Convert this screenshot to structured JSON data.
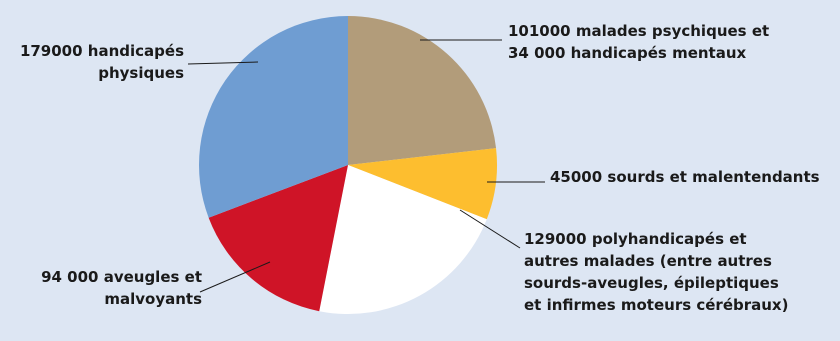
{
  "chart_data": {
    "type": "pie",
    "categories": [
      "malades psychiques et handicapés mentaux",
      "sourds et malentendants",
      "polyhandicapés et autres malades (entre autres sourds-aveugles, épileptiques et infirmes moteurs cérébraux)",
      "aveugles et malvoyants",
      "handicapés physiques"
    ],
    "values": [
      135000,
      45000,
      129000,
      94000,
      179000
    ],
    "colors": [
      "#b29c7a",
      "#fdbe2f",
      "#ffffff",
      "#cf1427",
      "#6f9dd2"
    ],
    "labels": [
      [
        "101000 malades psychiques et",
        "34 000 handicapés mentaux"
      ],
      [
        "45000 sourds et malentendants"
      ],
      [
        "129000 polyhandicapés et",
        "autres malades (entre autres",
        "sourds-aveugles, épileptiques",
        "et infirmes moteurs cérébraux)"
      ],
      [
        "94 000 aveugles et",
        "malvoyants"
      ],
      [
        "179000 handicapés",
        "physiques"
      ]
    ],
    "start": "top",
    "direction": "clockwise"
  }
}
